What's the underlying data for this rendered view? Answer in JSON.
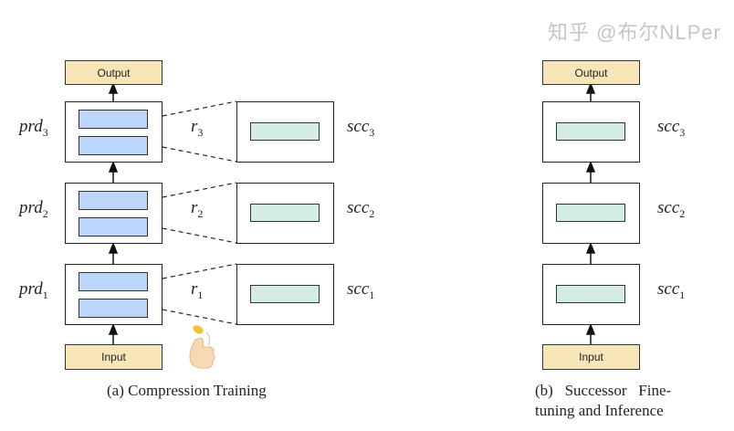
{
  "panel_a": {
    "output_label": "Output",
    "input_label": "Input",
    "predecessors": [
      {
        "name": "prd",
        "sub": "3"
      },
      {
        "name": "prd",
        "sub": "2"
      },
      {
        "name": "prd",
        "sub": "1"
      }
    ],
    "ratios": [
      {
        "name": "r",
        "sub": "3"
      },
      {
        "name": "r",
        "sub": "2"
      },
      {
        "name": "r",
        "sub": "1"
      }
    ],
    "successors": [
      {
        "name": "scc",
        "sub": "3"
      },
      {
        "name": "scc",
        "sub": "2"
      },
      {
        "name": "scc",
        "sub": "1"
      }
    ],
    "icon": "coin-flip-thumb-icon",
    "caption": "(a)  Compression Training"
  },
  "panel_b": {
    "output_label": "Output",
    "input_label": "Input",
    "successors": [
      {
        "name": "scc",
        "sub": "3"
      },
      {
        "name": "scc",
        "sub": "2"
      },
      {
        "name": "scc",
        "sub": "1"
      }
    ],
    "caption_line1": "(b)   Successor   Fine-",
    "caption_line2": "tuning and Inference"
  },
  "watermark": "知乎 @布尔NLPer",
  "colors": {
    "predecessor_module": "#bdd6fb",
    "successor_module": "#d4ede4",
    "io_box": "#f6e6b8"
  }
}
